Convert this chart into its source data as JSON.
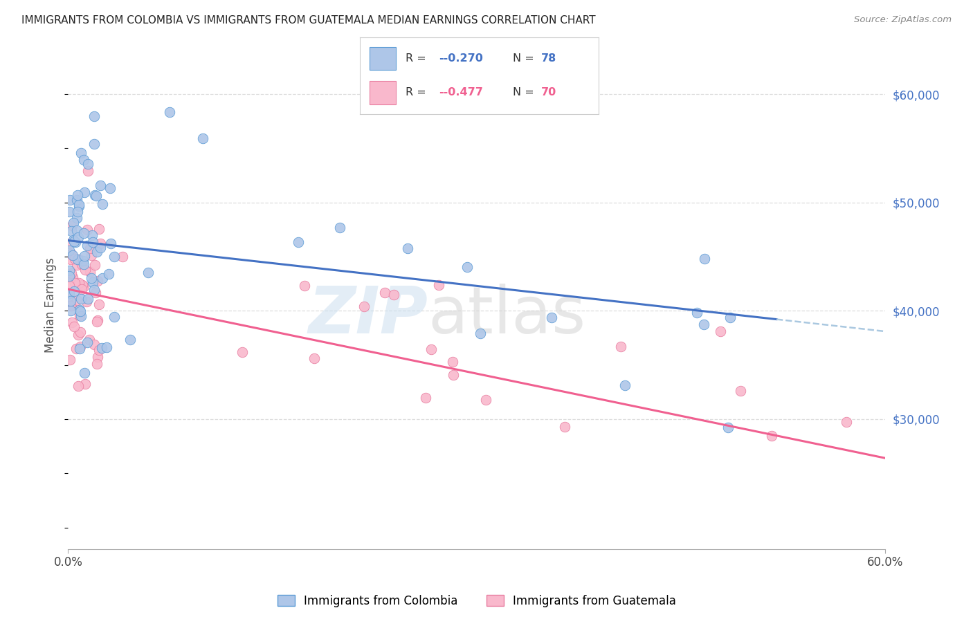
{
  "title": "IMMIGRANTS FROM COLOMBIA VS IMMIGRANTS FROM GUATEMALA MEDIAN EARNINGS CORRELATION CHART",
  "source": "Source: ZipAtlas.com",
  "ylabel": "Median Earnings",
  "right_yticks": [
    30000,
    40000,
    50000,
    60000
  ],
  "right_ytick_labels": [
    "$30,000",
    "$40,000",
    "$50,000",
    "$60,000"
  ],
  "legend_labels": [
    "Immigrants from Colombia",
    "Immigrants from Guatemala"
  ],
  "legend_r_col": "-0.270",
  "legend_n_col": "78",
  "legend_r_guat": "-0.477",
  "legend_n_guat": "70",
  "color_colombia_fill": "#aec6e8",
  "color_colombia_edge": "#5b9bd5",
  "color_guatemala_fill": "#f9b8cc",
  "color_guatemala_edge": "#e87da0",
  "color_colombia_line": "#4472c4",
  "color_guatemala_line": "#f06090",
  "color_dashed": "#aac8e0",
  "xlim": [
    0.0,
    0.6
  ],
  "ylim": [
    18000,
    63000
  ],
  "background_color": "#ffffff",
  "grid_color": "#dddddd",
  "xtick_positions": [
    0.0,
    0.6
  ],
  "xtick_labels": [
    "0.0%",
    "60.0%"
  ],
  "colombia_intercept": 46500,
  "colombia_slope": -14000,
  "guatemala_intercept": 42000,
  "guatemala_slope": -26000
}
